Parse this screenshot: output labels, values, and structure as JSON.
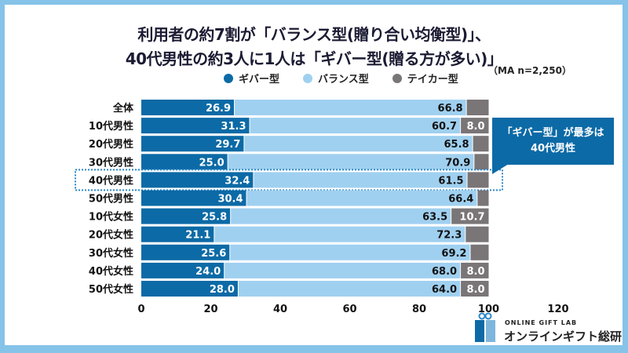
{
  "chart_data": {
    "type": "bar",
    "orientation": "horizontal",
    "stacked": true,
    "title": "利用者の約7割が「バランス型(贈り合い均衡型)」、",
    "subtitle": "40代男性の約3人に1人は「ギバー型(贈る方が多い)」",
    "note": "（MA n=2,250）",
    "categories": [
      "全体",
      "10代男性",
      "20代男性",
      "30代男性",
      "40代男性",
      "50代男性",
      "10代女性",
      "20代女性",
      "30代女性",
      "40代女性",
      "50代女性"
    ],
    "series": [
      {
        "name": "ギバー型",
        "color": "#0c6aa6",
        "values": [
          26.9,
          31.3,
          29.7,
          25.0,
          32.4,
          30.4,
          25.8,
          21.1,
          25.6,
          24.0,
          28.0
        ],
        "labels": [
          "26.9",
          "31.3",
          "29.7",
          "25.0",
          "32.4",
          "30.4",
          "25.8",
          "21.1",
          "25.6",
          "24.0",
          "28.0"
        ]
      },
      {
        "name": "バランス型",
        "color": "#a0d0f0",
        "values": [
          66.8,
          60.7,
          65.8,
          70.9,
          61.5,
          66.4,
          63.5,
          72.3,
          69.2,
          68.0,
          64.0
        ],
        "labels": [
          "66.8",
          "60.7",
          "65.8",
          "70.9",
          "61.5",
          "66.4",
          "63.5",
          "72.3",
          "69.2",
          "68.0",
          "64.0"
        ]
      },
      {
        "name": "テイカー型",
        "color": "#7a7577",
        "values": [
          6.3,
          8.0,
          4.5,
          4.1,
          6.1,
          3.2,
          10.7,
          6.6,
          5.2,
          8.0,
          8.0
        ],
        "labels": [
          "",
          "8.0",
          "",
          "",
          "",
          "",
          "10.7",
          "",
          "",
          "8.0",
          "8.0"
        ]
      }
    ],
    "xlim": [
      0,
      120
    ],
    "xticks": [
      "0",
      "20",
      "40",
      "60",
      "80",
      "100",
      "120"
    ],
    "grid": false,
    "legend_position": "top",
    "highlight_category": "40代男性"
  },
  "callout": {
    "line1": "「ギバー型」が最多は",
    "line2": "40代男性"
  },
  "logo": {
    "en": "ONLINE GIFT LAB",
    "ja": "オンラインギフト総研"
  }
}
